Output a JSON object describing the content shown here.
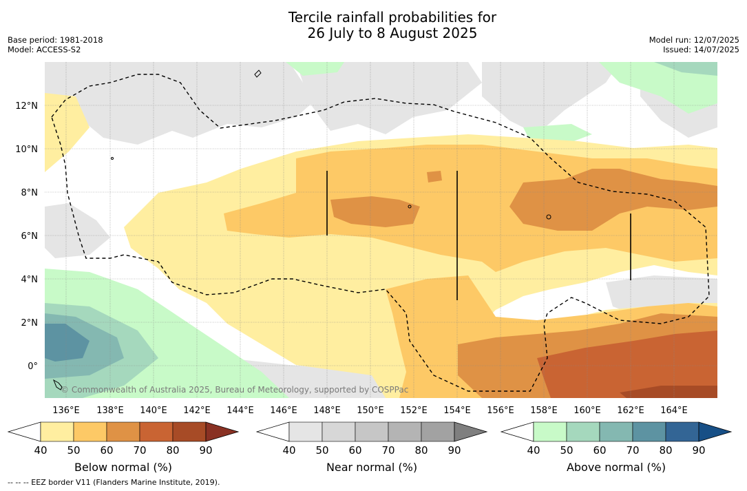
{
  "title_line1": "Tercile rainfall probabilities for",
  "title_line2": "26 July to 8 August 2025",
  "base_period": "Base period: 1981-2018",
  "model": "Model: ACCESS-S2",
  "model_run": "Model run: 12/07/2025",
  "issued": "Issued: 14/07/2025",
  "copyright": "© Commonwealth of Australia 2025, Bureau of Meteorology, supported by COSPPac",
  "footnote": "-- -- -- EEZ border V11 (Flanders Marine Institute, 2019).",
  "lon_labels": [
    "136°E",
    "138°E",
    "140°E",
    "142°E",
    "144°E",
    "146°E",
    "148°E",
    "150°E",
    "152°E",
    "154°E",
    "156°E",
    "158°E",
    "160°E",
    "162°E",
    "164°E"
  ],
  "lat_labels": [
    "12°N",
    "10°N",
    "8°N",
    "6°N",
    "4°N",
    "2°N",
    "0°"
  ],
  "colorbars": [
    {
      "label": "Below normal (%)",
      "ticks": [
        "40",
        "50",
        "60",
        "70",
        "80",
        "90"
      ],
      "colors": [
        "#ffeea0",
        "#fdc966",
        "#df9245",
        "#c96433",
        "#a74b26",
        "#893123"
      ]
    },
    {
      "label": "Near normal (%)",
      "ticks": [
        "40",
        "50",
        "60",
        "70",
        "80",
        "90"
      ],
      "colors": [
        "#e5e5e5",
        "#d7d7d7",
        "#c6c6c6",
        "#b4b4b4",
        "#a2a2a2",
        "#7f7f7f"
      ]
    },
    {
      "label": "Above normal (%)",
      "ticks": [
        "40",
        "50",
        "60",
        "70",
        "80",
        "90"
      ],
      "colors": [
        "#c8fac8",
        "#a5d8bd",
        "#84b8b1",
        "#5d93a2",
        "#336595",
        "#174f86"
      ]
    }
  ],
  "colors": {
    "below_40": "#ffeea0",
    "below_50": "#fdc966",
    "below_60": "#df9245",
    "below_70": "#c96433",
    "near_40": "#e5e5e5",
    "above_40": "#c8fac8",
    "above_50": "#a5d8bd",
    "above_60": "#84b8b1",
    "above_70": "#5d93a2"
  }
}
